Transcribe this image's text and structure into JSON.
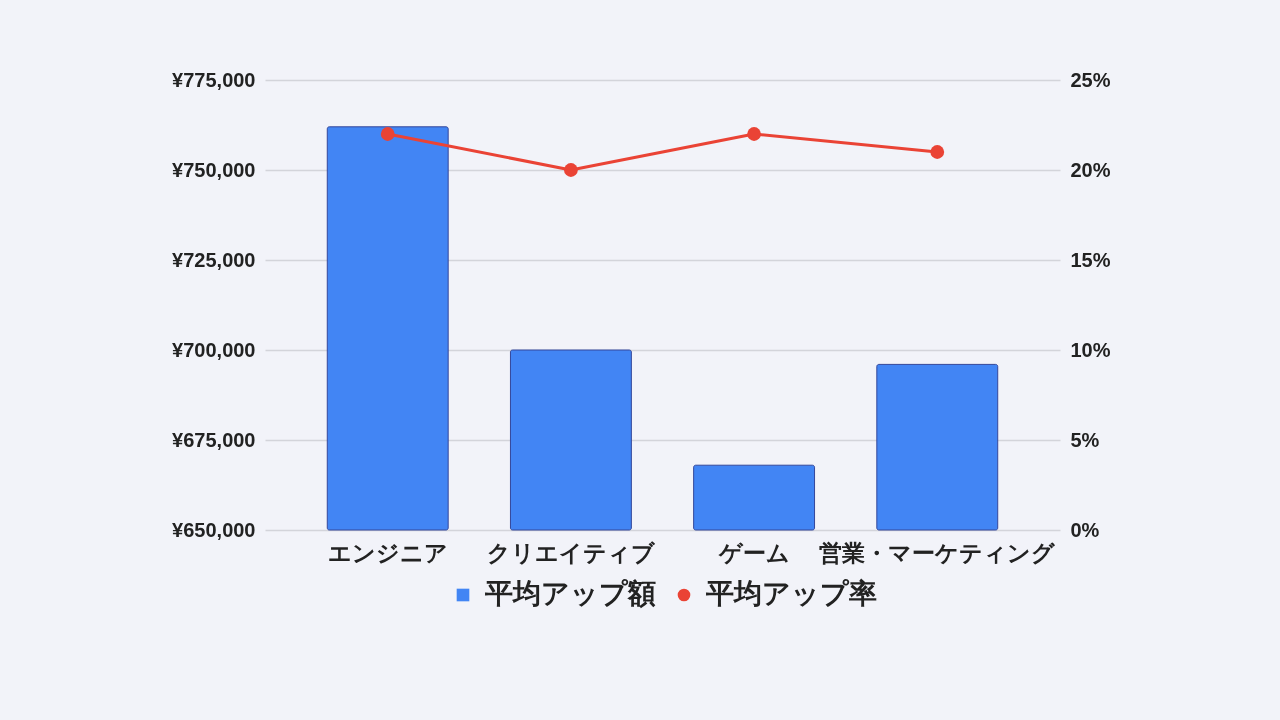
{
  "chart_data": {
    "type": "bar",
    "categories": [
      "エンジニア",
      "クリエイティブ",
      "ゲーム",
      "営業・マーケティング"
    ],
    "series": [
      {
        "name": "平均アップ額",
        "color": "#4285f4",
        "values": [
          762000,
          700000,
          668000,
          696000
        ]
      },
      {
        "name": "平均アップ率",
        "type": "line",
        "axis": "y2",
        "color": "#ea4335",
        "values": [
          22,
          20,
          22,
          21
        ]
      }
    ],
    "ylim": [
      650000,
      775000
    ],
    "yticks": [
      {
        "value": 650000,
        "label": "¥650,000"
      },
      {
        "value": 675000,
        "label": "¥675,000"
      },
      {
        "value": 700000,
        "label": "¥700,000"
      },
      {
        "value": 725000,
        "label": "¥725,000"
      },
      {
        "value": 750000,
        "label": "¥750,000"
      },
      {
        "value": 775000,
        "label": "¥775,000"
      }
    ],
    "y2lim": [
      0,
      25
    ],
    "y2ticks": [
      {
        "value": 0,
        "label": "0%"
      },
      {
        "value": 5,
        "label": "5%"
      },
      {
        "value": 10,
        "label": "10%"
      },
      {
        "value": 15,
        "label": "15%"
      },
      {
        "value": 20,
        "label": "20%"
      },
      {
        "value": 25,
        "label": "25%"
      }
    ],
    "grid": "y",
    "legend": "bottom",
    "marker": "circle",
    "line_style": "solid"
  }
}
